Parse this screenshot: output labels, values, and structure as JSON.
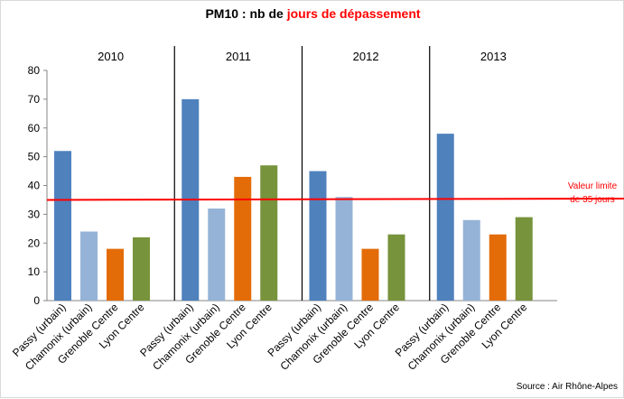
{
  "title": {
    "prefix": "PM10 : nb de ",
    "highlight": "jours de dépassement",
    "highlight_color": "#ff0000"
  },
  "source": "Source : Air Rhône-Alpes",
  "chart_data": {
    "type": "bar",
    "title": "PM10 : nb de jours de dépassement",
    "groups": [
      "2010",
      "2011",
      "2012",
      "2013"
    ],
    "categories": [
      "Passy (urbain)",
      "Chamonix (urbain)",
      "Grenoble Centre",
      "Lyon Centre"
    ],
    "values": [
      [
        52,
        24,
        18,
        22
      ],
      [
        70,
        32,
        43,
        47
      ],
      [
        45,
        36,
        18,
        23
      ],
      [
        58,
        28,
        23,
        29
      ]
    ],
    "colors": [
      "#4f81bd",
      "#95b3d7",
      "#e36c09",
      "#77933c"
    ],
    "ylim": [
      0,
      80
    ],
    "yticks": [
      0,
      10,
      20,
      30,
      40,
      50,
      60,
      70,
      80
    ],
    "grid": false,
    "reference_line": {
      "value": 35,
      "color": "#ff0000",
      "label_lines": [
        "Valeur limite",
        "de 35 jours"
      ]
    }
  }
}
